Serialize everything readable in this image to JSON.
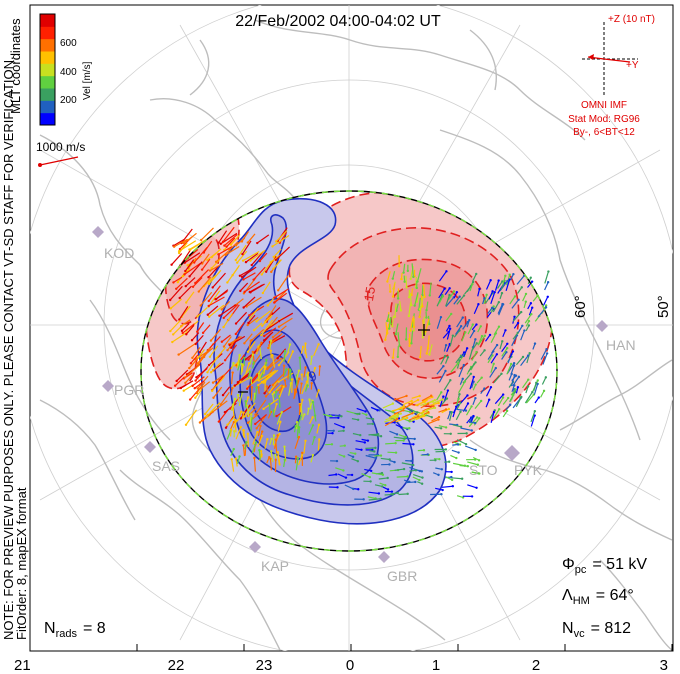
{
  "title": "22/Feb/2002 04:00-04:02 UT",
  "colorbar": {
    "unit_label": "Vel [m/s]",
    "tick_labels": [
      "600",
      "400",
      "200"
    ],
    "colors": [
      "#0000ff",
      "#2060c0",
      "#3aa060",
      "#60d040",
      "#c8e020",
      "#ffc000",
      "#ff7000",
      "#ff2000",
      "#e00000"
    ]
  },
  "side_notes": {
    "coordinates": "MLT coordinates",
    "preview_note": "NOTE: FOR PREVIEW PURPOSES ONLY. PLEASE CONTACT VT-SD STAFF FOR VERIFICATION.",
    "fit_order": "FitOrder: 8, mapEX format"
  },
  "vector_scale": "1000 m/s",
  "imf": {
    "z_label": "+Z (10 nT)",
    "y_label": "+Y",
    "source": "OMNI IMF",
    "model": "Stat Mod: RG96",
    "condition": "By-, 6<BT<12"
  },
  "latitude_labels": [
    "60°",
    "50°"
  ],
  "stations": [
    "KOD",
    "PGR",
    "SAS",
    "KAP",
    "GBR",
    "STO",
    "PYK",
    "HAN"
  ],
  "contour_labels": [
    "-15",
    "9"
  ],
  "stats": {
    "phi_pc": {
      "symbol": "Φ",
      "sub": "pc",
      "value": "= 51 kV"
    },
    "lambda_hm": {
      "symbol": "Λ",
      "sub": "HM",
      "value": "= 64°"
    },
    "n_vc": {
      "symbol": "N",
      "sub": "vc",
      "value": "= 812"
    },
    "n_rads": {
      "symbol": "N",
      "sub": "rads",
      "value": "= 8"
    }
  },
  "mlt_axis": [
    "21",
    "22",
    "23",
    "0",
    "1",
    "2",
    "3"
  ],
  "style": {
    "positive_contour": "#e02020",
    "negative_contour": "#2030c0",
    "positive_fill": "#f6c8c8",
    "negative_fill": "#c8c8ec",
    "grid": "#cfcfcf",
    "land": "#bdbdbd"
  }
}
